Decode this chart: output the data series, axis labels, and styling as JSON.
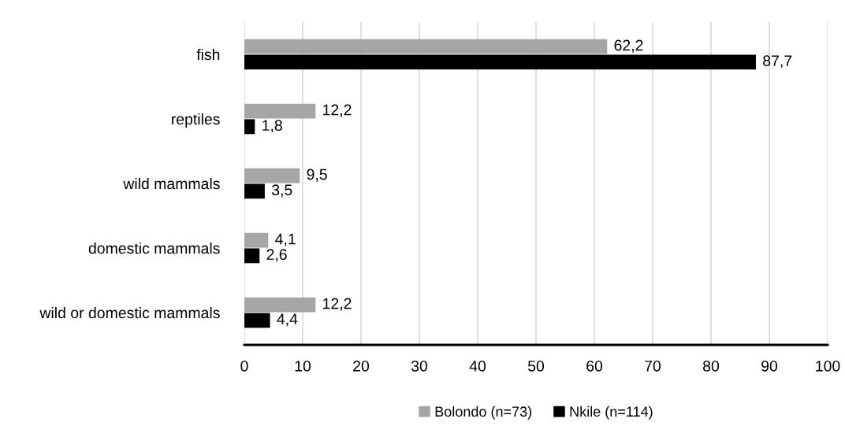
{
  "chart_data": {
    "type": "bar",
    "orientation": "horizontal",
    "categories": [
      "fish",
      "reptiles",
      "wild mammals",
      "domestic mammals",
      "wild or domestic mammals"
    ],
    "series": [
      {
        "name": "Bolondo (n=73)",
        "color": "#a5a5a5",
        "values": [
          62.2,
          12.2,
          9.5,
          4.1,
          12.2
        ],
        "value_labels": [
          "62,2",
          "12,2",
          "9,5",
          "4,1",
          "12,2"
        ]
      },
      {
        "name": "Nkile (n=114)",
        "color": "#000000",
        "values": [
          87.7,
          1.8,
          3.5,
          2.6,
          4.4
        ],
        "value_labels": [
          "87,7",
          "1,8",
          "3,5",
          "2,6",
          "4,4"
        ]
      }
    ],
    "xlim": [
      0,
      100
    ],
    "xticks": [
      0,
      10,
      20,
      30,
      40,
      50,
      60,
      70,
      80,
      90,
      100
    ],
    "grid": "x",
    "legend": "bottom"
  }
}
